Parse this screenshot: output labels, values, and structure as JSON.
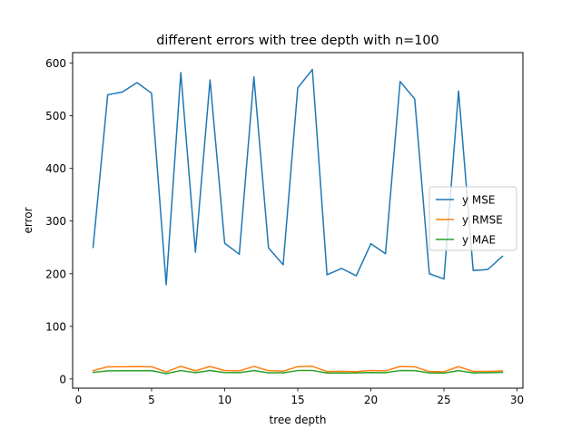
{
  "chart_data": {
    "type": "line",
    "title": "different errors with tree depth with n=100",
    "xlabel": "tree depth",
    "ylabel": "error",
    "xlim": [
      -0.4,
      30.4
    ],
    "ylim": [
      -17.5,
      620
    ],
    "xticks": [
      0,
      5,
      10,
      15,
      20,
      25,
      30
    ],
    "yticks": [
      0,
      100,
      200,
      300,
      400,
      500,
      600
    ],
    "grid": false,
    "legend_position": "center-right",
    "x": [
      1,
      2,
      3,
      4,
      5,
      6,
      7,
      8,
      9,
      10,
      11,
      12,
      13,
      14,
      15,
      16,
      17,
      18,
      19,
      20,
      21,
      22,
      23,
      24,
      25,
      26,
      27,
      28,
      29
    ],
    "series": [
      {
        "name": "y MSE",
        "color": "#1f77b4",
        "values": [
          250,
          540,
          545,
          563,
          543,
          179,
          582,
          241,
          568,
          258,
          237,
          574,
          249,
          217,
          553,
          588,
          198,
          210,
          196,
          257,
          238,
          565,
          532,
          200,
          190,
          547,
          206,
          208,
          233
        ]
      },
      {
        "name": "y RMSE",
        "color": "#ff7f0e",
        "values": [
          15.8,
          23.2,
          23.3,
          23.7,
          23.3,
          13.4,
          24.1,
          15.5,
          23.8,
          16.1,
          15.4,
          24.0,
          15.8,
          14.7,
          23.5,
          24.2,
          14.1,
          14.5,
          14.0,
          16.0,
          15.4,
          23.8,
          23.1,
          14.1,
          13.8,
          23.4,
          14.4,
          14.4,
          15.3
        ]
      },
      {
        "name": "y MAE",
        "color": "#2ca02c",
        "values": [
          12.5,
          15.5,
          15.6,
          15.6,
          15.8,
          10.3,
          16.0,
          12.0,
          16.1,
          12.2,
          12.0,
          15.9,
          11.8,
          11.7,
          16.0,
          16.2,
          11.4,
          11.4,
          11.5,
          12.3,
          12.0,
          16.0,
          15.8,
          11.5,
          11.2,
          15.8,
          11.6,
          12.0,
          12.7
        ]
      }
    ]
  }
}
